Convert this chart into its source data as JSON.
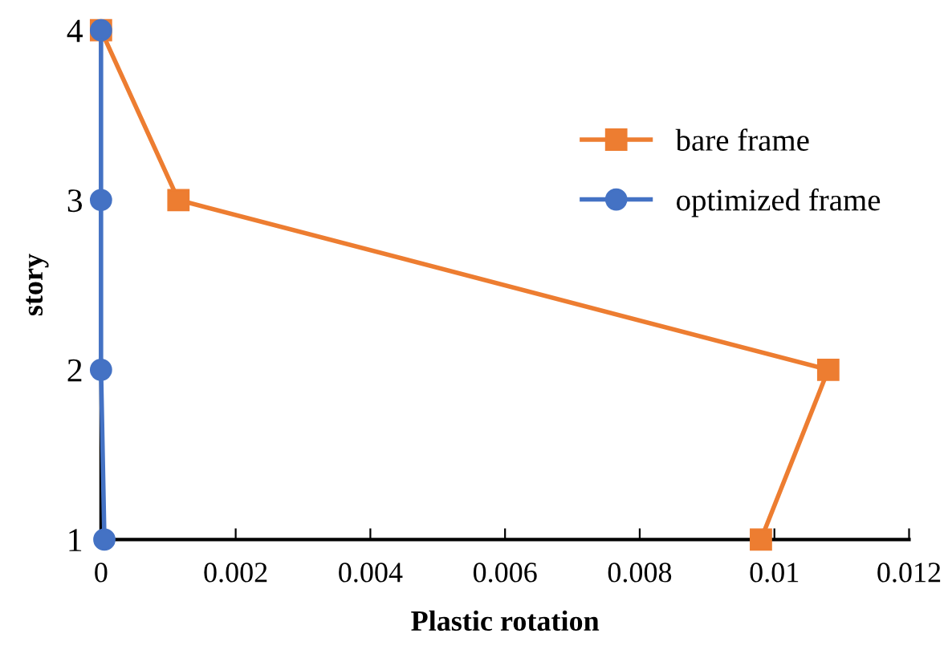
{
  "chart_data": {
    "type": "line",
    "xlabel": "Plastic rotation",
    "ylabel": "story",
    "xlim": [
      0,
      0.012
    ],
    "xticks": [
      0,
      0.002,
      0.004,
      0.006,
      0.008,
      0.01,
      0.012
    ],
    "ylim": [
      1,
      4
    ],
    "yticks": [
      1,
      2,
      3,
      4
    ],
    "grid": false,
    "legend": "right",
    "series": [
      {
        "name": "bare frame",
        "color": "#ed7d31",
        "marker": "square",
        "x": [
          0,
          0.00115,
          0.0108,
          0.0098
        ],
        "values": [
          4,
          3,
          2,
          1
        ]
      },
      {
        "name": "optimized frame",
        "color": "#4472c4",
        "marker": "circle",
        "x": [
          0,
          0,
          0,
          5e-05
        ],
        "values": [
          4,
          3,
          2,
          1
        ]
      }
    ]
  }
}
